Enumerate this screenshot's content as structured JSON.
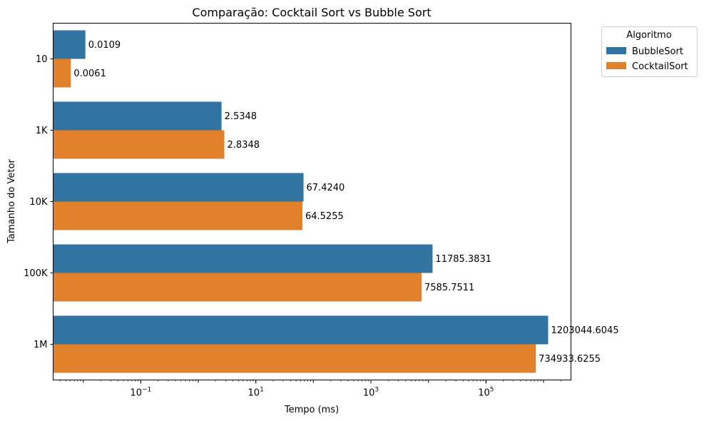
{
  "chart_data": {
    "type": "bar",
    "orientation": "horizontal",
    "title": "Comparação: Cocktail Sort vs Bubble Sort",
    "xlabel": "Tempo (ms)",
    "ylabel": "Tamanho do Vetor",
    "x_scale": "log",
    "xlim": [
      0.003,
      3000000
    ],
    "x_ticks": [
      {
        "value": 0.1,
        "base": "10",
        "exp": "−1"
      },
      {
        "value": 10,
        "base": "10",
        "exp": "1"
      },
      {
        "value": 1000,
        "base": "10",
        "exp": "3"
      },
      {
        "value": 100000,
        "base": "10",
        "exp": "5"
      }
    ],
    "categories": [
      "10",
      "1K",
      "10K",
      "100K",
      "1M"
    ],
    "series": [
      {
        "name": "BubbleSort",
        "color": "#3274a1",
        "values": [
          0.0109,
          2.5348,
          67.424,
          11785.3831,
          1203044.6045
        ],
        "labels": [
          "0.0109",
          "2.5348",
          "67.4240",
          "11785.3831",
          "1203044.6045"
        ]
      },
      {
        "name": "CocktailSort",
        "color": "#e1812c",
        "values": [
          0.0061,
          2.8348,
          64.5255,
          7585.7511,
          734933.6255
        ],
        "labels": [
          "0.0061",
          "2.8348",
          "64.5255",
          "7585.7511",
          "734933.6255"
        ]
      }
    ],
    "grid": false,
    "legend": {
      "title": "Algoritmo",
      "placement": "outside-top-right"
    }
  }
}
